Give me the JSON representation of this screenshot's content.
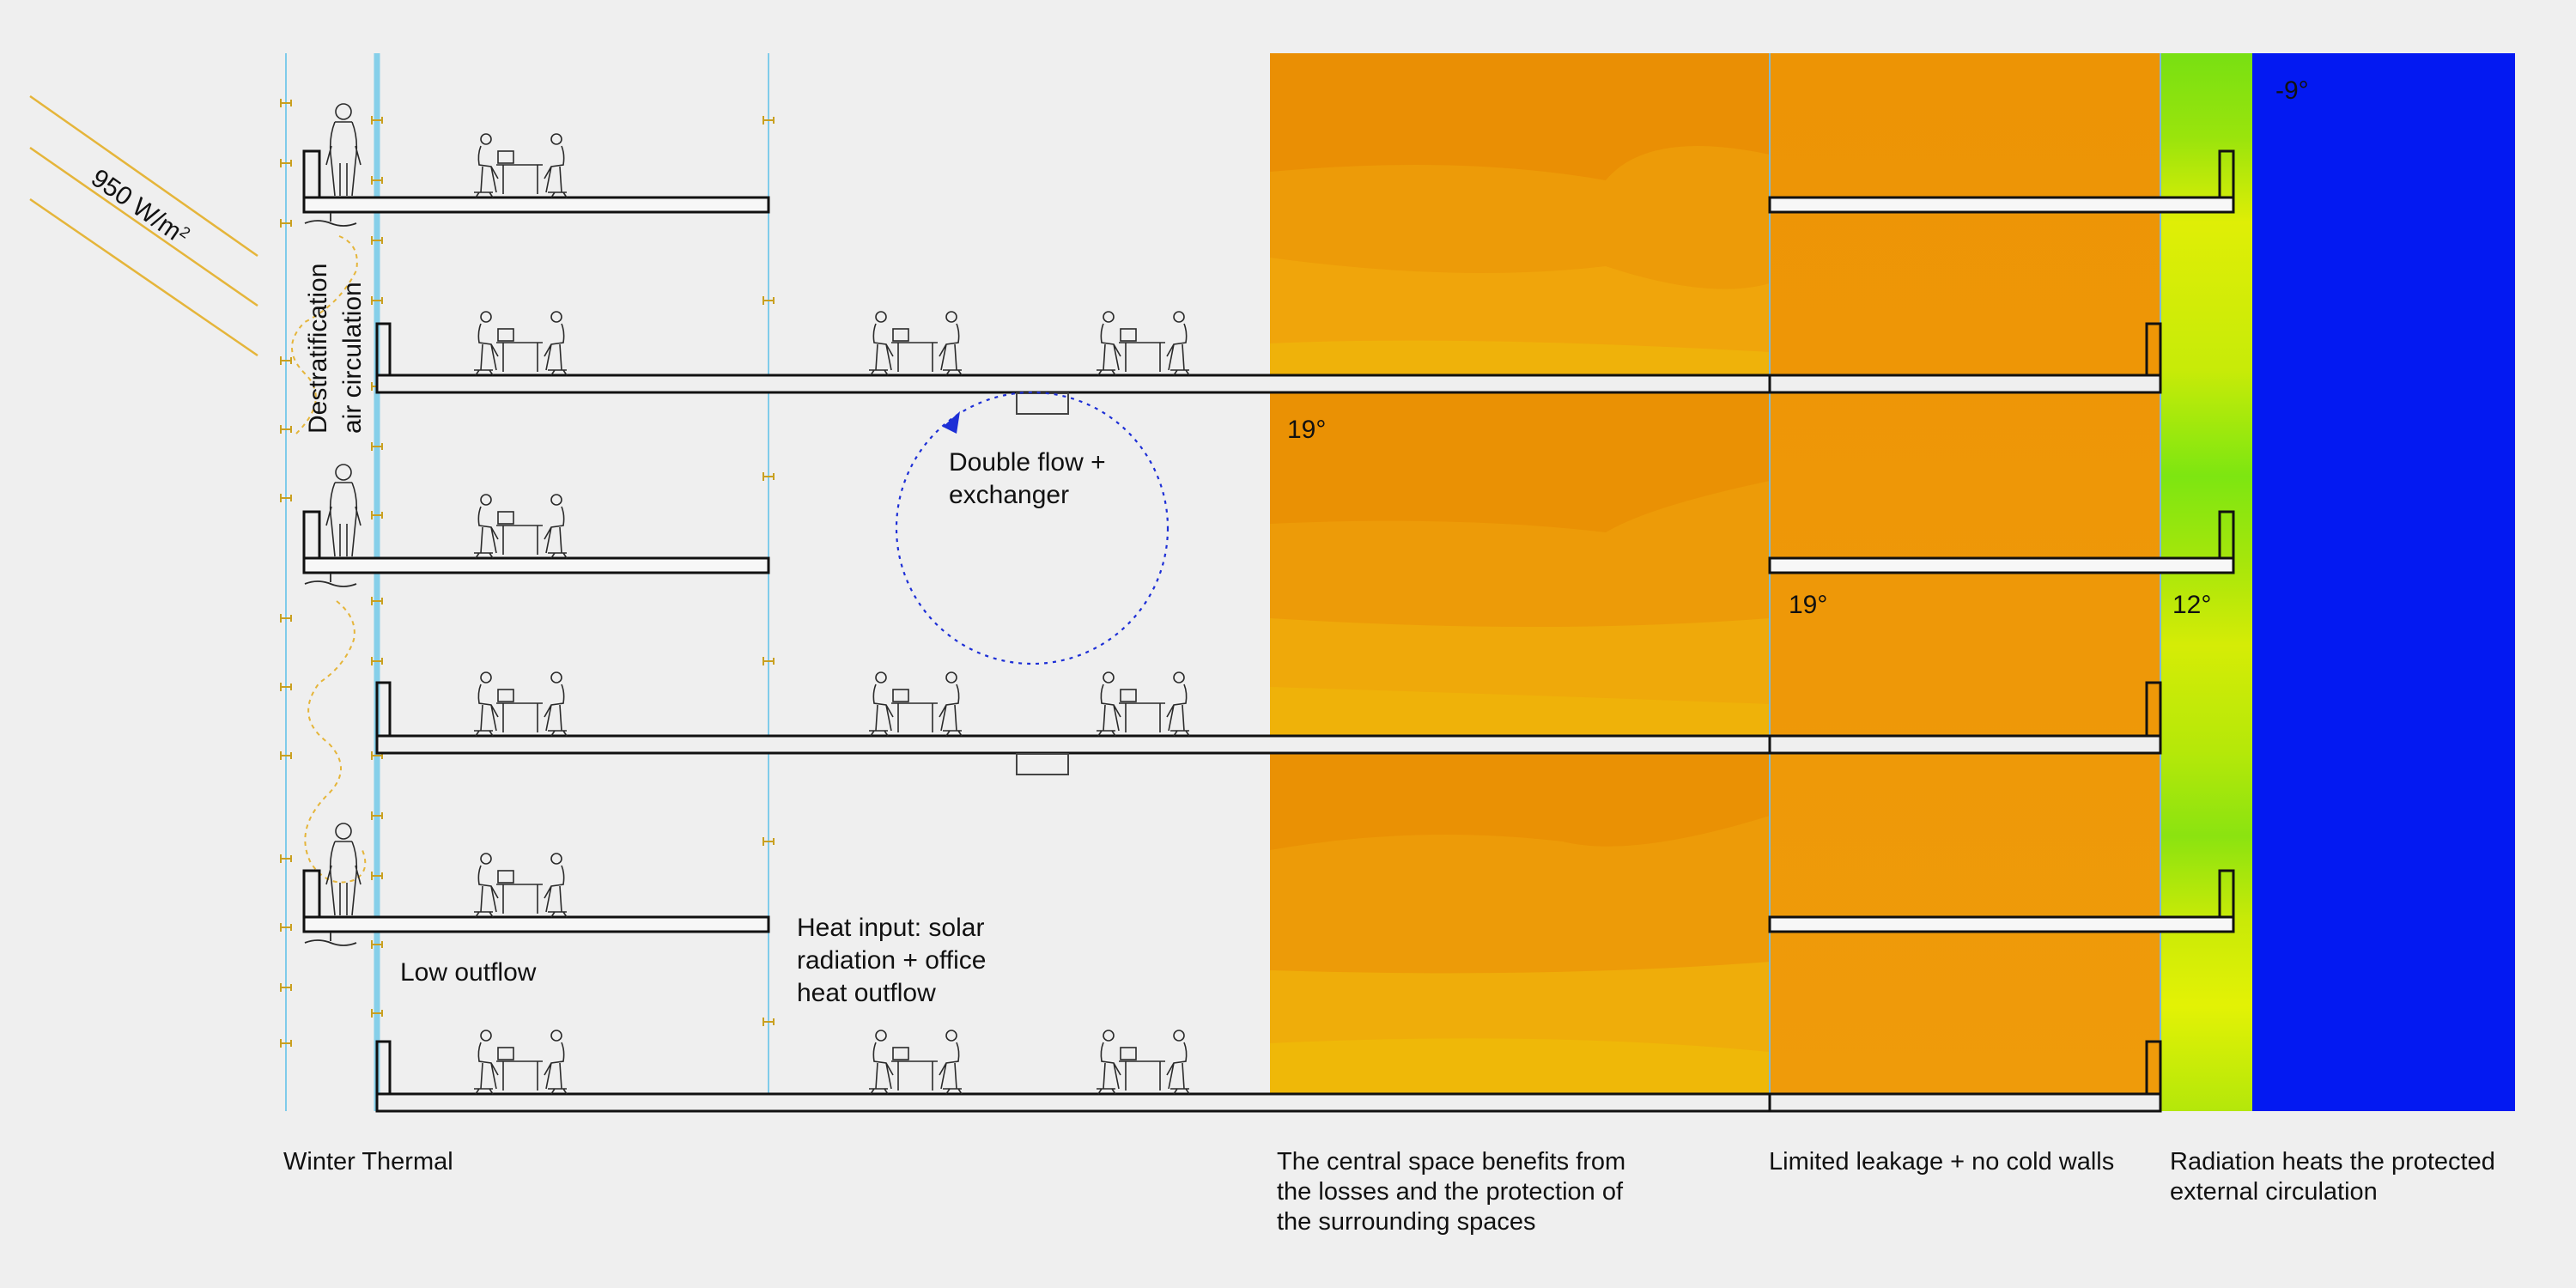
{
  "diagram": {
    "title": "Winter Thermal",
    "solar_radiation": {
      "value": 950,
      "label_main": "950 W/m",
      "label_sup": "2"
    },
    "annotations": {
      "destratification": [
        "Destratification",
        "air circulation"
      ],
      "double_flow": [
        "Double flow +",
        "exchanger"
      ],
      "heat_input": [
        "Heat input: solar",
        "radiation + office",
        "heat outflow"
      ],
      "low_outflow": "Low outflow"
    },
    "temperatures": {
      "central": "19°",
      "perimeter": "19°",
      "circulation": "12°",
      "outdoor": "-9°"
    },
    "captions": {
      "central": [
        "The central space benefits from",
        "the losses and the protection of",
        "the surrounding spaces"
      ],
      "perimeter": [
        "Limited leakage + no cold walls"
      ],
      "circulation": [
        "Radiation heats the protected",
        "external circulation"
      ]
    },
    "colors": {
      "background": "#efefef",
      "central_zone": "#ec9a10",
      "perimeter_zone": "#ee9504",
      "circulation_zone": "#b2e808",
      "outdoor": "#0319f2",
      "glazing": "#7fcbea",
      "solar_rays": "#e5b53a",
      "exchanger_loop": "#1d2fd6"
    },
    "icons": [
      "office-desk-pair-icon",
      "standing-person-icon",
      "ceiling-fan-icon",
      "sun-ray-icon",
      "wall-vent-icon"
    ]
  }
}
